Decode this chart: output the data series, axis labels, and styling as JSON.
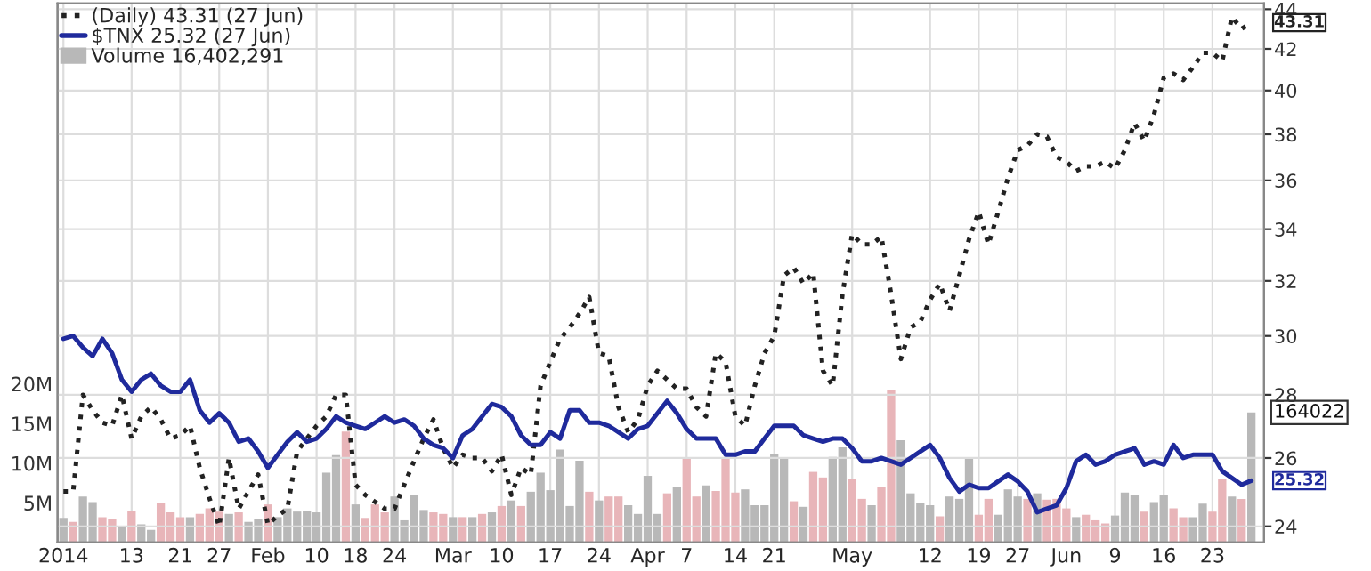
{
  "chart_data": {
    "type": "line",
    "grid": true,
    "annotations": [
      "164022"
    ],
    "legend": "top left",
    "log": "y2",
    "categories": [
      "2014",
      null,
      null,
      null,
      null,
      null,
      null,
      "13",
      null,
      null,
      null,
      null,
      "21",
      null,
      null,
      null,
      "27",
      null,
      null,
      null,
      null,
      "Feb",
      null,
      null,
      null,
      null,
      "10",
      null,
      null,
      null,
      "18",
      null,
      null,
      null,
      "24",
      null,
      null,
      null,
      null,
      null,
      "Mar",
      null,
      null,
      null,
      null,
      "10",
      null,
      null,
      null,
      null,
      "17",
      null,
      null,
      null,
      null,
      "24",
      null,
      null,
      null,
      null,
      "Apr",
      null,
      null,
      null,
      "7",
      null,
      null,
      null,
      null,
      "14",
      null,
      null,
      null,
      "21",
      null,
      null,
      null,
      null,
      null,
      null,
      null,
      "May",
      null,
      null,
      null,
      null,
      null,
      null,
      null,
      "12",
      null,
      null,
      null,
      null,
      "19",
      null,
      null,
      null,
      "27",
      null,
      null,
      null,
      null,
      "Jun",
      null,
      null,
      null,
      null,
      "9",
      null,
      null,
      null,
      null,
      "16",
      null,
      null,
      null,
      null,
      "23",
      null,
      null,
      null,
      null
    ],
    "ylim": [
      0,
      68
    ],
    "yticks": [
      {
        "value": 5,
        "label": "5M"
      },
      {
        "value": 10,
        "label": "10M"
      },
      {
        "value": 15,
        "label": "15M"
      },
      {
        "value": 20,
        "label": "20M"
      }
    ],
    "y2lim": [
      23.55,
      44.3
    ],
    "y2ticks": [
      24,
      26,
      28,
      30,
      32,
      34,
      36,
      38,
      40,
      42,
      44
    ],
    "series": [
      {
        "name": "(Daily) 43.31 (27 Jun)",
        "axis": "y2",
        "line_style": "dotted",
        "color": "#222222",
        "values": [
          25.0,
          25.0,
          28.0,
          27.5,
          27.1,
          27.0,
          28.0,
          26.6,
          27.3,
          27.6,
          27.2,
          26.6,
          26.7,
          27.0,
          25.7,
          24.8,
          24.0,
          26.0,
          24.5,
          25.0,
          25.5,
          24.05,
          24.3,
          24.5,
          26.2,
          26.6,
          27.0,
          27.3,
          28.0,
          28.0,
          25.2,
          24.9,
          24.7,
          24.5,
          24.5,
          25.2,
          25.9,
          26.6,
          27.2,
          26.3,
          25.7,
          26.1,
          26.0,
          26.0,
          25.6,
          26.1,
          24.9,
          25.7,
          25.5,
          28.3,
          29.1,
          29.9,
          30.3,
          30.8,
          31.4,
          29.4,
          29.3,
          27.6,
          26.8,
          27.2,
          28.3,
          28.8,
          28.5,
          28.2,
          28.2,
          27.6,
          27.3,
          29.4,
          29.1,
          27.3,
          27.0,
          28.3,
          29.4,
          30.0,
          32.2,
          32.5,
          31.9,
          32.3,
          28.8,
          28.3,
          31.5,
          33.8,
          33.4,
          33.4,
          33.7,
          31.5,
          29.2,
          30.3,
          30.5,
          31.3,
          31.9,
          30.9,
          32.2,
          33.6,
          34.7,
          33.4,
          34.7,
          36.1,
          37.3,
          37.5,
          38.0,
          37.9,
          37.0,
          36.8,
          36.4,
          36.6,
          36.6,
          36.8,
          36.5,
          37.3,
          38.5,
          37.7,
          38.9,
          40.6,
          40.8,
          40.5,
          41.1,
          41.8,
          41.8,
          41.4,
          43.6,
          43.0,
          43.31
        ],
        "value_labels": [
          null,
          null,
          null,
          null,
          null,
          null,
          null,
          null,
          null,
          null,
          null,
          null,
          null,
          null,
          null,
          null,
          null,
          null,
          null,
          null,
          null,
          null,
          null,
          null,
          null,
          null,
          null,
          null,
          null,
          null,
          null,
          null,
          null,
          null,
          null,
          null,
          null,
          null,
          null,
          null,
          null,
          null,
          null,
          null,
          null,
          null,
          null,
          null,
          null,
          null,
          null,
          null,
          null,
          null,
          null,
          null,
          null,
          null,
          null,
          null,
          null,
          null,
          null,
          null,
          null,
          null,
          null,
          null,
          null,
          null,
          null,
          null,
          null,
          null,
          null,
          null,
          null,
          null,
          null,
          null,
          null,
          null,
          null,
          null,
          null,
          null,
          null,
          null,
          null,
          null,
          null,
          null,
          null,
          null,
          null,
          null,
          null,
          null,
          null,
          null,
          null,
          null,
          null,
          null,
          null,
          null,
          null,
          null,
          null,
          null,
          null,
          null,
          null,
          null,
          null,
          null,
          null,
          null,
          null,
          null,
          null,
          null,
          "43.31"
        ]
      },
      {
        "name": "$TNX 25.32 (27 Jun)",
        "type": "line",
        "axis": "y2",
        "line_style": "solid",
        "color": "#1f2a9c",
        "values": [
          29.9,
          30.0,
          29.6,
          29.3,
          29.9,
          29.4,
          28.5,
          28.1,
          28.5,
          28.7,
          28.3,
          28.1,
          28.1,
          28.5,
          27.5,
          27.1,
          27.4,
          27.1,
          26.5,
          26.6,
          26.2,
          25.7,
          26.1,
          26.5,
          26.8,
          26.5,
          26.6,
          26.9,
          27.3,
          27.1,
          27.0,
          26.9,
          27.1,
          27.3,
          27.1,
          27.2,
          27.0,
          26.6,
          26.4,
          26.3,
          26.0,
          26.7,
          26.9,
          27.3,
          27.7,
          27.6,
          27.3,
          26.7,
          26.4,
          26.4,
          26.8,
          26.6,
          27.5,
          27.5,
          27.1,
          27.1,
          27.0,
          26.8,
          26.6,
          26.9,
          27.0,
          27.4,
          27.8,
          27.4,
          26.9,
          26.6,
          26.6,
          26.6,
          26.1,
          26.1,
          26.2,
          26.2,
          26.6,
          27.0,
          27.0,
          27.0,
          26.7,
          26.6,
          26.5,
          26.6,
          26.6,
          26.3,
          25.9,
          25.9,
          26.0,
          25.9,
          25.8,
          26.0,
          26.2,
          26.4,
          26.0,
          25.4,
          25.0,
          25.2,
          25.1,
          25.1,
          25.3,
          25.5,
          25.3,
          25.0,
          24.4,
          24.5,
          24.6,
          25.1,
          25.9,
          26.1,
          25.8,
          25.9,
          26.1,
          26.2,
          26.3,
          25.8,
          25.9,
          25.8,
          26.4,
          26.0,
          26.1,
          26.1,
          26.1,
          25.6,
          25.4,
          25.2,
          25.32
        ],
        "value_labels": [
          null,
          null,
          null,
          null,
          null,
          null,
          null,
          null,
          null,
          null,
          null,
          null,
          null,
          null,
          null,
          null,
          null,
          null,
          null,
          null,
          null,
          null,
          null,
          null,
          null,
          null,
          null,
          null,
          null,
          null,
          null,
          null,
          null,
          null,
          null,
          null,
          null,
          null,
          null,
          null,
          null,
          null,
          null,
          null,
          null,
          null,
          null,
          null,
          null,
          null,
          null,
          null,
          null,
          null,
          null,
          null,
          null,
          null,
          null,
          null,
          null,
          null,
          null,
          null,
          null,
          null,
          null,
          null,
          null,
          null,
          null,
          null,
          null,
          null,
          null,
          null,
          null,
          null,
          null,
          null,
          null,
          null,
          null,
          null,
          null,
          null,
          null,
          null,
          null,
          null,
          null,
          null,
          null,
          null,
          null,
          null,
          null,
          null,
          null,
          null,
          null,
          null,
          null,
          null,
          null,
          null,
          null,
          null,
          null,
          null,
          null,
          null,
          null,
          null,
          null,
          null,
          null,
          null,
          null,
          null,
          null,
          null,
          "25.32"
        ]
      },
      {
        "name": "Volume 16,402,291",
        "type": "bar",
        "color": "#b8b8b8",
        "values": [
          3.1,
          2.6,
          5.8,
          5.1,
          3.2,
          3.0,
          2.0,
          4.0,
          2.3,
          1.6,
          5.0,
          3.8,
          3.2,
          3.2,
          3.6,
          4.3,
          3.9,
          3.6,
          3.8,
          2.6,
          3.0,
          4.8,
          3.2,
          4.3,
          3.9,
          4.0,
          3.8,
          8.8,
          11.0,
          14.0,
          4.8,
          3.1,
          4.8,
          3.8,
          5.8,
          2.8,
          6.0,
          4.1,
          3.8,
          3.6,
          3.2,
          3.2,
          3.2,
          3.6,
          3.8,
          4.6,
          5.3,
          4.6,
          6.4,
          8.8,
          6.6,
          11.7,
          4.6,
          10.3,
          6.4,
          5.3,
          5.8,
          5.8,
          4.7,
          3.6,
          8.4,
          3.6,
          6.2,
          7.0,
          10.6,
          5.8,
          7.2,
          6.5,
          10.6,
          6.3,
          6.7,
          4.7,
          4.7,
          11.2,
          10.6,
          5.2,
          4.5,
          8.9,
          8.2,
          10.8,
          12.0,
          8.0,
          5.5,
          4.7,
          7.0,
          19.3,
          12.9,
          6.2,
          5.0,
          4.7,
          3.3,
          5.8,
          5.5,
          10.6,
          3.5,
          5.5,
          3.5,
          6.7,
          5.8,
          5.5,
          6.2,
          5.4,
          5.5,
          4.3,
          3.2,
          3.5,
          2.8,
          2.4,
          3.4,
          6.3,
          6.0,
          3.9,
          5.1,
          6.0,
          4.3,
          3.2,
          3.2,
          4.9,
          3.9,
          8.0,
          5.8,
          5.5,
          16.4
        ],
        "colors": [
          "#b8b8b8",
          "#e8b5b9",
          "#b8b8b8",
          "#b8b8b8",
          "#e8b5b9",
          "#e8b5b9",
          "#b8b8b8",
          "#e8b5b9",
          "#b8b8b8",
          "#b8b8b8",
          "#e8b5b9",
          "#e8b5b9",
          "#e8b5b9",
          "#b8b8b8",
          "#e8b5b9",
          "#e8b5b9",
          "#e8b5b9",
          "#b8b8b8",
          "#e8b5b9",
          "#b8b8b8",
          "#b8b8b8",
          "#e8b5b9",
          "#b8b8b8",
          "#b8b8b8",
          "#b8b8b8",
          "#b8b8b8",
          "#b8b8b8",
          "#b8b8b8",
          "#b8b8b8",
          "#e8b5b9",
          "#b8b8b8",
          "#e8b5b9",
          "#e8b5b9",
          "#e8b5b9",
          "#b8b8b8",
          "#b8b8b8",
          "#b8b8b8",
          "#b8b8b8",
          "#e8b5b9",
          "#e8b5b9",
          "#b8b8b8",
          "#e8b5b9",
          "#b8b8b8",
          "#e8b5b9",
          "#b8b8b8",
          "#e8b5b9",
          "#b8b8b8",
          "#e8b5b9",
          "#b8b8b8",
          "#b8b8b8",
          "#b8b8b8",
          "#b8b8b8",
          "#b8b8b8",
          "#b8b8b8",
          "#e8b5b9",
          "#b8b8b8",
          "#e8b5b9",
          "#e8b5b9",
          "#b8b8b8",
          "#b8b8b8",
          "#b8b8b8",
          "#b8b8b8",
          "#e8b5b9",
          "#b8b8b8",
          "#e8b5b9",
          "#e8b5b9",
          "#b8b8b8",
          "#e8b5b9",
          "#e8b5b9",
          "#e8b5b9",
          "#b8b8b8",
          "#b8b8b8",
          "#b8b8b8",
          "#b8b8b8",
          "#b8b8b8",
          "#e8b5b9",
          "#b8b8b8",
          "#e8b5b9",
          "#e8b5b9",
          "#b8b8b8",
          "#b8b8b8",
          "#e8b5b9",
          "#e8b5b9",
          "#b8b8b8",
          "#e8b5b9",
          "#e8b5b9",
          "#b8b8b8",
          "#b8b8b8",
          "#b8b8b8",
          "#b8b8b8",
          "#e8b5b9",
          "#b8b8b8",
          "#b8b8b8",
          "#b8b8b8",
          "#e8b5b9",
          "#e8b5b9",
          "#b8b8b8",
          "#b8b8b8",
          "#b8b8b8",
          "#e8b5b9",
          "#b8b8b8",
          "#e8b5b9",
          "#e8b5b9",
          "#e8b5b9",
          "#b8b8b8",
          "#e8b5b9",
          "#e8b5b9",
          "#e8b5b9",
          "#b8b8b8",
          "#b8b8b8",
          "#b8b8b8",
          "#e8b5b9",
          "#b8b8b8",
          "#b8b8b8",
          "#e8b5b9",
          "#e8b5b9",
          "#b8b8b8",
          "#b8b8b8",
          "#e8b5b9",
          "#e8b5b9",
          "#b8b8b8",
          "#e8b5b9",
          "#b8b8b8"
        ]
      }
    ]
  }
}
